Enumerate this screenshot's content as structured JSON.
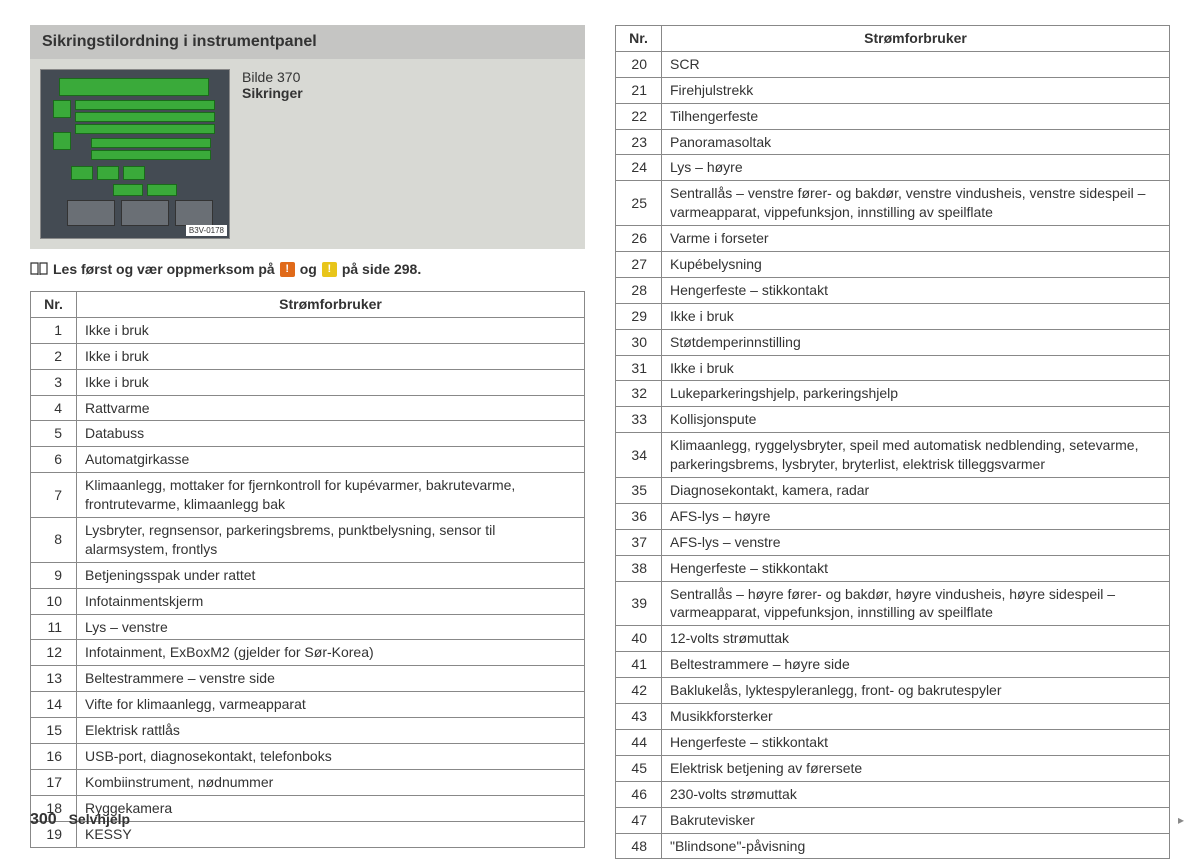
{
  "title": "Sikringstilordning i instrumentpanel",
  "image": {
    "caption_line1": "Bilde 370",
    "caption_line2": "Sikringer",
    "diagram_label": "B3V-0178"
  },
  "notice": {
    "prefix": "Les først og vær oppmerksom på",
    "mid": "og",
    "suffix": "på side 298.",
    "badge1": "!",
    "badge2": "!"
  },
  "headers": {
    "nr": "Nr.",
    "consumer": "Strømforbruker"
  },
  "left_rows": [
    {
      "nr": "1",
      "txt": "Ikke i bruk"
    },
    {
      "nr": "2",
      "txt": "Ikke i bruk"
    },
    {
      "nr": "3",
      "txt": "Ikke i bruk"
    },
    {
      "nr": "4",
      "txt": "Rattvarme"
    },
    {
      "nr": "5",
      "txt": "Databuss"
    },
    {
      "nr": "6",
      "txt": "Automatgirkasse"
    },
    {
      "nr": "7",
      "txt": "Klimaanlegg, mottaker for fjernkontroll for kupévarmer, bakrutevarme, frontrutevarme, klimaanlegg bak"
    },
    {
      "nr": "8",
      "txt": "Lysbryter, regnsensor, parkeringsbrems, punktbelysning, sensor til alarmsystem, frontlys"
    },
    {
      "nr": "9",
      "txt": "Betjeningsspak under rattet"
    },
    {
      "nr": "10",
      "txt": "Infotainmentskjerm"
    },
    {
      "nr": "11",
      "txt": "Lys – venstre"
    },
    {
      "nr": "12",
      "txt": "Infotainment, ExBoxM2 (gjelder for Sør-Korea)"
    },
    {
      "nr": "13",
      "txt": "Beltestrammere – venstre side"
    },
    {
      "nr": "14",
      "txt": "Vifte for klimaanlegg, varmeapparat"
    },
    {
      "nr": "15",
      "txt": "Elektrisk rattlås"
    },
    {
      "nr": "16",
      "txt": "USB-port, diagnosekontakt, telefonboks"
    },
    {
      "nr": "17",
      "txt": "Kombiinstrument, nødnummer"
    },
    {
      "nr": "18",
      "txt": "Ryggekamera"
    },
    {
      "nr": "19",
      "txt": "KESSY"
    }
  ],
  "right_rows": [
    {
      "nr": "20",
      "txt": "SCR"
    },
    {
      "nr": "21",
      "txt": "Firehjulstrekk"
    },
    {
      "nr": "22",
      "txt": "Tilhengerfeste"
    },
    {
      "nr": "23",
      "txt": "Panoramasoltak"
    },
    {
      "nr": "24",
      "txt": "Lys – høyre"
    },
    {
      "nr": "25",
      "txt": "Sentrallås – venstre fører- og bakdør, venstre vindusheis, venstre sidespeil – varmeapparat, vippefunksjon, innstilling av speilflate"
    },
    {
      "nr": "26",
      "txt": "Varme i forseter"
    },
    {
      "nr": "27",
      "txt": "Kupébelysning"
    },
    {
      "nr": "28",
      "txt": "Hengerfeste – stikkontakt"
    },
    {
      "nr": "29",
      "txt": "Ikke i bruk"
    },
    {
      "nr": "30",
      "txt": "Støtdemperinnstilling"
    },
    {
      "nr": "31",
      "txt": "Ikke i bruk"
    },
    {
      "nr": "32",
      "txt": "Lukeparkeringshjelp, parkeringshjelp"
    },
    {
      "nr": "33",
      "txt": "Kollisjonspute"
    },
    {
      "nr": "34",
      "txt": "Klimaanlegg, ryggelysbryter, speil med automatisk nedblending, setevarme, parkeringsbrems, lysbryter, bryterlist, elektrisk tilleggsvarmer"
    },
    {
      "nr": "35",
      "txt": "Diagnosekontakt, kamera, radar"
    },
    {
      "nr": "36",
      "txt": "AFS-lys – høyre"
    },
    {
      "nr": "37",
      "txt": "AFS-lys – venstre"
    },
    {
      "nr": "38",
      "txt": "Hengerfeste – stikkontakt"
    },
    {
      "nr": "39",
      "txt": "Sentrallås – høyre fører- og bakdør, høyre vindusheis, høyre sidespeil – varmeapparat, vippefunksjon, innstilling av speilflate"
    },
    {
      "nr": "40",
      "txt": "12-volts strømuttak"
    },
    {
      "nr": "41",
      "txt": "Beltestrammere – høyre side"
    },
    {
      "nr": "42",
      "txt": "Baklukelås, lyktespyleranlegg, front- og bakrutespyler"
    },
    {
      "nr": "43",
      "txt": "Musikkforsterker"
    },
    {
      "nr": "44",
      "txt": "Hengerfeste – stikkontakt"
    },
    {
      "nr": "45",
      "txt": "Elektrisk betjening av førersete"
    },
    {
      "nr": "46",
      "txt": "230-volts strømuttak"
    },
    {
      "nr": "47",
      "txt": "Bakrutevisker"
    },
    {
      "nr": "48",
      "txt": "\"Blindsone\"-påvisning"
    }
  ],
  "footer": {
    "page": "300",
    "chapter": "Selvhjelp"
  },
  "colors": {
    "header_bg": "#c5c5c3",
    "imgbox_bg": "#d8d9d4",
    "fuse_green": "#3aaa3a",
    "warn_orange": "#e06a1a",
    "warn_yellow": "#e8c51a",
    "border": "#888888"
  }
}
